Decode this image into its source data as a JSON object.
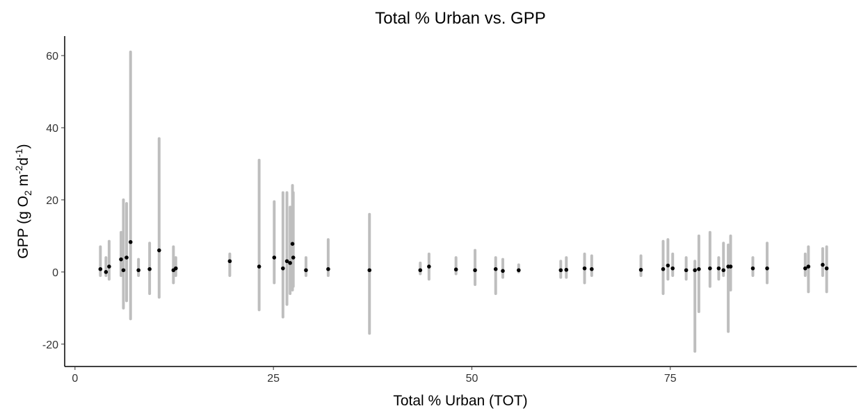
{
  "chart_data": {
    "type": "scatter",
    "title": "Total % Urban vs. GPP",
    "xlabel": "Total % Urban (TOT)",
    "ylabel": [
      "GPP (g O",
      "2",
      " m",
      "-2",
      "d",
      "-1",
      ")"
    ],
    "xlim": [
      -1.3,
      98.5
    ],
    "ylim": [
      -26.2,
      65.4
    ],
    "xticks": [
      0,
      25,
      50,
      75
    ],
    "yticks": [
      -20,
      0,
      20,
      40,
      60
    ],
    "grid": false,
    "range_color": "#bebebe",
    "mean_color": "#000000",
    "x": [
      3.2,
      3.9,
      4.3,
      5.8,
      6.1,
      6.5,
      7.0,
      8.0,
      9.4,
      10.6,
      12.4,
      12.7,
      19.5,
      23.2,
      25.1,
      26.2,
      26.7,
      27.1,
      27.4,
      27.5,
      29.1,
      31.9,
      37.1,
      43.5,
      44.6,
      48.0,
      50.4,
      53.0,
      53.9,
      55.9,
      61.2,
      61.9,
      64.2,
      65.1,
      71.3,
      74.1,
      74.7,
      75.3,
      77.0,
      78.1,
      78.6,
      80.0,
      81.1,
      81.7,
      82.3,
      82.6,
      85.4,
      87.2,
      92.0,
      92.4,
      94.2,
      94.7
    ],
    "ymin": [
      -1,
      -1,
      -2,
      -1,
      -10,
      -8,
      -13,
      -1,
      -6,
      -7,
      -3,
      -1,
      -1,
      -10.5,
      -3,
      -12.5,
      -9,
      -6,
      -5,
      -4,
      -1,
      -1,
      -17,
      -0.5,
      -2,
      -0.5,
      -3.5,
      -6,
      -1.5,
      0,
      -1.5,
      -1.5,
      -3,
      -1,
      -1,
      -6,
      -2,
      -1,
      -2,
      -22,
      -11,
      -4,
      -2,
      -1,
      -16.5,
      -5,
      -1,
      -3,
      -1,
      -5.5,
      -1,
      -5.5
    ],
    "ymax": [
      7,
      4,
      8.5,
      11,
      20,
      19,
      61,
      3.5,
      8,
      37,
      7,
      4,
      5,
      31,
      19.5,
      22,
      22,
      18,
      24,
      22,
      4,
      9,
      16,
      2.5,
      5,
      4,
      6,
      4,
      3.5,
      2,
      3,
      4,
      5,
      4.5,
      4.5,
      8.5,
      9,
      5,
      4,
      3,
      10,
      11,
      4,
      8,
      7.5,
      10,
      4,
      8,
      5,
      7,
      6.5,
      7
    ],
    "means": [
      0.8,
      0,
      1.5,
      3.5,
      0.5,
      4,
      8.3,
      0.5,
      0.8,
      6,
      0.5,
      1,
      3,
      1.5,
      4,
      1,
      3,
      2.5,
      7.8,
      4,
      0.5,
      0.8,
      0.5,
      0.5,
      1.5,
      0.7,
      0.5,
      0.8,
      0.3,
      0.5,
      0.5,
      0.6,
      1,
      0.8,
      0.6,
      0.8,
      1.8,
      1,
      0.5,
      0.5,
      0.8,
      1,
      1,
      0.5,
      1.5,
      1.5,
      1,
      1,
      1,
      1.5,
      2,
      1
    ]
  }
}
